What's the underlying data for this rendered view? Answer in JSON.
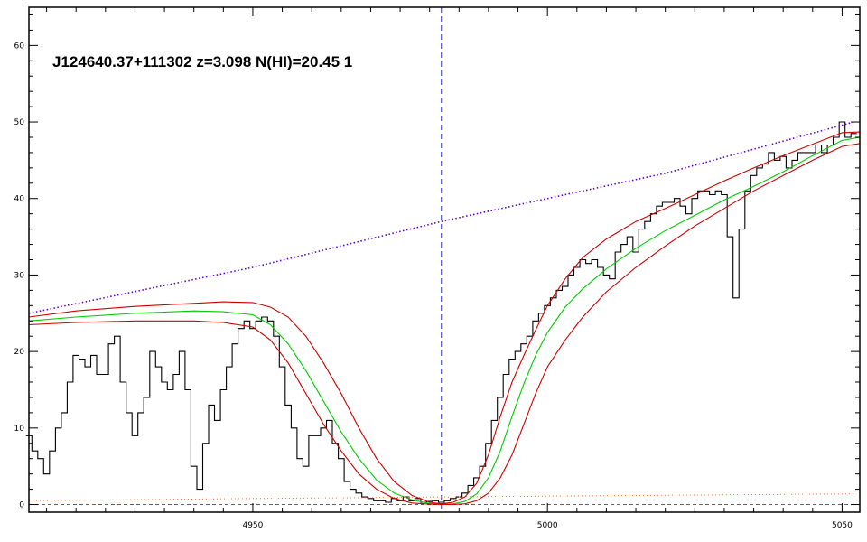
{
  "chart_data": {
    "type": "line",
    "title": "J124640.37+111302 z=3.098 N(HI)=20.45 1",
    "xlabel": "",
    "ylabel": "",
    "xlim": [
      4912,
      5053
    ],
    "ylim": [
      -1,
      65
    ],
    "x_ticks": [
      4950,
      5000,
      5050
    ],
    "y_ticks": [
      0,
      10,
      20,
      30,
      40,
      50,
      60
    ],
    "grid": false,
    "legend": "none",
    "marker_x": 4982,
    "colors": {
      "spectrum": "#000000",
      "fit": "#00cc00",
      "fit_bounds": "#cc0000",
      "continuum": "#6600cc",
      "marker": "#3333cc",
      "error": "#e08050"
    },
    "series": [
      {
        "id": "spectrum",
        "style": "histogram",
        "x": [
          4912,
          4913,
          4914,
          4915,
          4916,
          4917,
          4918,
          4919,
          4920,
          4921,
          4922,
          4923,
          4924,
          4925,
          4926,
          4927,
          4928,
          4929,
          4930,
          4931,
          4932,
          4933,
          4934,
          4935,
          4936,
          4937,
          4938,
          4939,
          4940,
          4941,
          4942,
          4943,
          4944,
          4945,
          4946,
          4947,
          4948,
          4949,
          4950,
          4951,
          4952,
          4953,
          4954,
          4955,
          4956,
          4957,
          4958,
          4959,
          4960,
          4961,
          4962,
          4963,
          4964,
          4965,
          4966,
          4967,
          4968,
          4969,
          4970,
          4971,
          4972,
          4973,
          4974,
          4975,
          4976,
          4977,
          4978,
          4979,
          4980,
          4981,
          4982,
          4983,
          4984,
          4985,
          4986,
          4987,
          4988,
          4989,
          4990,
          4991,
          4992,
          4993,
          4994,
          4995,
          4996,
          4997,
          4998,
          4999,
          5000,
          5001,
          5002,
          5003,
          5004,
          5005,
          5006,
          5007,
          5008,
          5009,
          5010,
          5011,
          5012,
          5013,
          5014,
          5015,
          5016,
          5017,
          5018,
          5019,
          5020,
          5021,
          5022,
          5023,
          5024,
          5025,
          5026,
          5027,
          5028,
          5029,
          5030,
          5031,
          5032,
          5033,
          5034,
          5035,
          5036,
          5037,
          5038,
          5039,
          5040,
          5041,
          5042,
          5043,
          5044,
          5045,
          5046,
          5047,
          5048,
          5049,
          5050,
          5051,
          5052
        ],
        "y": [
          9,
          7,
          6,
          4,
          7,
          10,
          12,
          16,
          19.5,
          19,
          18,
          19.5,
          17,
          17,
          21,
          22,
          16,
          12,
          9,
          12,
          14,
          20,
          18,
          16,
          15,
          17,
          20,
          15,
          5,
          2,
          8,
          13,
          11,
          15,
          18,
          21,
          23,
          24,
          23,
          24,
          24.5,
          24,
          22,
          18,
          13,
          10,
          6,
          5,
          9,
          9,
          10,
          11,
          8,
          6,
          3,
          2,
          1.5,
          1,
          0.8,
          0.5,
          0.5,
          0.3,
          0.8,
          0.5,
          1,
          0.5,
          0.8,
          0.3,
          0.4,
          0.5,
          0.3,
          0.5,
          0.8,
          1,
          1.5,
          2.5,
          3.5,
          5,
          8,
          11,
          14,
          17,
          19,
          20,
          21,
          22,
          24,
          25,
          26,
          27,
          28,
          28.5,
          30,
          31,
          32,
          31.5,
          32,
          31,
          30,
          29.5,
          33,
          34,
          35,
          33,
          36,
          37,
          38,
          39,
          39.5,
          39.5,
          40,
          39,
          38,
          40,
          41,
          41,
          40.5,
          41,
          40.5,
          35,
          27,
          36,
          41,
          43,
          44,
          44.5,
          46,
          45,
          45.5,
          44,
          45,
          46,
          46,
          46,
          47,
          46,
          47,
          48,
          50,
          48,
          48.5
        ]
      },
      {
        "id": "fit",
        "style": "line",
        "x": [
          4912,
          4920,
          4930,
          4940,
          4945,
          4950,
          4953,
          4956,
          4959,
          4962,
          4965,
          4968,
          4971,
          4974,
          4977,
          4980,
          4982,
          4984,
          4986,
          4988,
          4990,
          4992,
          4994,
          4996,
          4998,
          5000,
          5003,
          5006,
          5010,
          5015,
          5020,
          5025,
          5030,
          5035,
          5040,
          5045,
          5050,
          5053
        ],
        "y": [
          24,
          24.5,
          25,
          25.3,
          25.2,
          24.8,
          23.5,
          21,
          17.5,
          13.5,
          9.5,
          6,
          3.2,
          1.5,
          0.6,
          0.15,
          0.05,
          0.1,
          0.4,
          1.4,
          3.5,
          7,
          11.5,
          15.8,
          19.5,
          22.5,
          25.8,
          28.2,
          30.8,
          33.5,
          35.8,
          37.8,
          39.8,
          41.6,
          43.5,
          45.6,
          47.6,
          48
        ]
      },
      {
        "id": "fit-upper",
        "style": "line",
        "x": [
          4912,
          4920,
          4930,
          4940,
          4945,
          4950,
          4953,
          4956,
          4959,
          4962,
          4965,
          4968,
          4971,
          4974,
          4977,
          4980,
          4982,
          4984,
          4986,
          4988,
          4990,
          4992,
          4994,
          4996,
          4998,
          5000,
          5003,
          5006,
          5010,
          5015,
          5020,
          5025,
          5030,
          5035,
          5040,
          5045,
          5050,
          5053
        ],
        "y": [
          24.5,
          25.3,
          25.9,
          26.3,
          26.5,
          26.4,
          25.8,
          24.5,
          22,
          18.5,
          14.5,
          10,
          6,
          3,
          1.2,
          0.3,
          0.1,
          0.3,
          1,
          2.8,
          6.5,
          11.5,
          16,
          19.5,
          22.8,
          26,
          29.5,
          32.3,
          34.7,
          37,
          38.7,
          40.5,
          42.3,
          44,
          45.6,
          47.1,
          48.6,
          48.7
        ]
      },
      {
        "id": "fit-lower",
        "style": "line",
        "x": [
          4912,
          4920,
          4930,
          4940,
          4945,
          4950,
          4953,
          4956,
          4959,
          4962,
          4965,
          4968,
          4971,
          4974,
          4977,
          4980,
          4982,
          4984,
          4986,
          4988,
          4990,
          4992,
          4994,
          4996,
          4998,
          5000,
          5003,
          5006,
          5010,
          5015,
          5020,
          5025,
          5030,
          5035,
          5040,
          5045,
          5050,
          5053
        ],
        "y": [
          23.5,
          23.8,
          24,
          24,
          23.8,
          23.2,
          21.5,
          18.5,
          14.5,
          10.5,
          7,
          4,
          2,
          0.8,
          0.2,
          0.05,
          0,
          0,
          0.1,
          0.5,
          1.5,
          3.5,
          6.5,
          10.5,
          14.5,
          18,
          21.5,
          24.5,
          27.8,
          31,
          33.8,
          36.4,
          38.7,
          41,
          43,
          45,
          46.8,
          47.2
        ]
      },
      {
        "id": "continuum",
        "style": "dotted",
        "x": [
          4912,
          4950,
          4982,
          5000,
          5020,
          5040,
          5052
        ],
        "y": [
          25,
          31,
          37,
          40,
          43.3,
          47.5,
          50
        ]
      },
      {
        "id": "error",
        "style": "dotted",
        "x": [
          4912,
          4950,
          5000,
          5052
        ],
        "y": [
          0.5,
          0.8,
          1.1,
          1.4
        ]
      }
    ]
  }
}
